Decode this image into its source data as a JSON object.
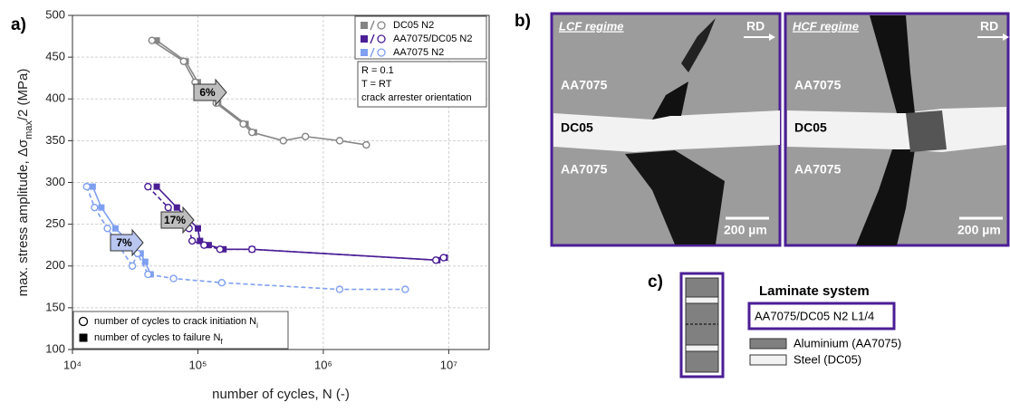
{
  "chart_data": {
    "type": "line",
    "panel_label": "a)",
    "x_label": "number of cycles, N (-)",
    "y_label_parts": [
      "max. stress amplitude, Δσ",
      "max",
      "/2 (MPa)"
    ],
    "log_x": true,
    "grid": true,
    "xlim": [
      10000,
      21000000
    ],
    "xticks": [
      {
        "value": 10000,
        "label": "10⁴"
      },
      {
        "value": 100000,
        "label": "10⁵"
      },
      {
        "value": 1000000,
        "label": "10⁶"
      },
      {
        "value": 10000000,
        "label": "10⁷"
      }
    ],
    "ylim": [
      100,
      500
    ],
    "yticks": [
      100,
      150,
      200,
      250,
      300,
      350,
      400,
      450,
      500
    ],
    "series": [
      {
        "name": "DC05 N2",
        "color": "#858585",
        "initiation_x": [
          43000,
          77000,
          95000,
          140000,
          230000,
          270000,
          480000,
          720000,
          1350000,
          2200000
        ],
        "initiation_values": [
          470,
          445,
          420,
          395,
          370,
          360,
          350,
          355,
          350,
          345
        ],
        "failure_x": [
          47000,
          80000,
          100000,
          145000,
          240000,
          280000
        ],
        "failure_values": [
          470,
          445,
          420,
          395,
          370,
          360
        ]
      },
      {
        "name": "AA7075/DC05 N2",
        "color": "#4b1e96",
        "initiation_x": [
          40000,
          58000,
          85000,
          90000,
          112000,
          150000,
          270000,
          7900000,
          9100000
        ],
        "initiation_values": [
          295,
          270,
          245,
          230,
          225,
          220,
          220,
          207,
          210
        ],
        "failure_x": [
          47000,
          68000,
          100000,
          104000,
          122000,
          160000,
          270000,
          8100000,
          9300000
        ],
        "failure_values": [
          295,
          270,
          245,
          230,
          225,
          220,
          220,
          207,
          210
        ]
      },
      {
        "name": "AA7075 N2",
        "color": "#7f9ff0",
        "initiation_x": [
          13000,
          15000,
          19000,
          30000,
          33000,
          40000,
          64000,
          155000,
          1350000,
          4500000
        ],
        "initiation_values": [
          295,
          270,
          245,
          200,
          215,
          190,
          185,
          180,
          172,
          172
        ],
        "failure_x": [
          14500,
          17000,
          22000,
          35000,
          38000,
          42000
        ],
        "failure_values": [
          295,
          270,
          245,
          215,
          205,
          190
        ]
      }
    ],
    "annotations": [
      "6%",
      "17%",
      "7%"
    ],
    "conditions": [
      "R = 0.1",
      "T = RT",
      "crack arrester orientation"
    ],
    "marker_legend": [
      [
        "number of cycles to crack initiation N",
        "i"
      ],
      [
        "number of cycles to failure N",
        "f"
      ]
    ]
  },
  "micrographs": {
    "panel_label": "b)",
    "images": [
      {
        "title": "LCF regime",
        "direction": "RD",
        "layers": [
          "AA7075",
          "DC05",
          "AA7075"
        ],
        "scale": "200 µm"
      },
      {
        "title": "HCF regime",
        "direction": "RD",
        "layers": [
          "AA7075",
          "DC05",
          "AA7075"
        ],
        "scale": "200 µm"
      }
    ]
  },
  "laminate": {
    "panel_label": "c)",
    "title": "Laminate system",
    "designation": "AA7075/DC05 N2 L1/4",
    "legend": [
      "Aluminium (AA7075)",
      "Steel (DC05)"
    ]
  }
}
